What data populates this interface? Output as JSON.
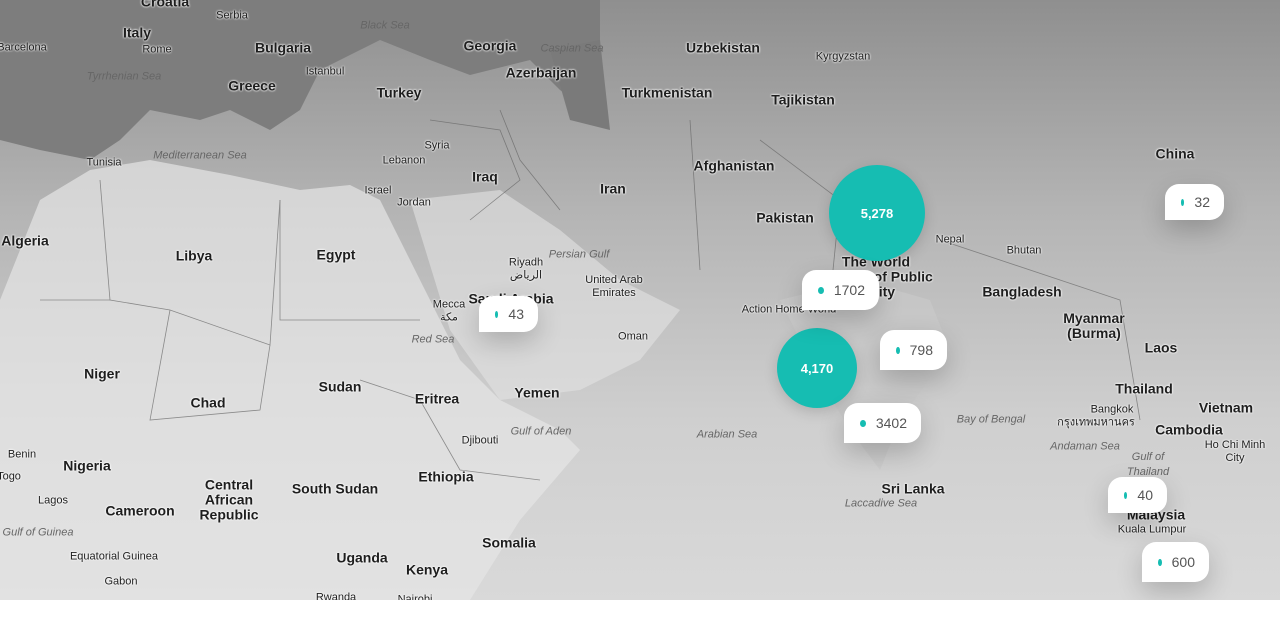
{
  "map": {
    "labels": [
      "Croatia",
      "Serbia",
      "Italy",
      "Rome",
      "Barcelona",
      "Bulgaria",
      "Istanbul",
      "Black Sea",
      "Georgia",
      "Caspian Sea",
      "Uzbekistan",
      "Kyrgyzstan",
      "Tyrrhenian Sea",
      "Greece",
      "Turkey",
      "Azerbaijan",
      "Turkmenistan",
      "Tajikistan",
      "Tunisia",
      "Mediterranean Sea",
      "Syria",
      "Lebanon",
      "Iraq",
      "Afghanistan",
      "China",
      "Israel",
      "Jordan",
      "Iran",
      "Pakistan",
      "Algeria",
      "Libya",
      "Egypt",
      "Riyadh",
      "الرياض",
      "Persian Gulf",
      "United Arab Emirates",
      "Nepal",
      "Bhutan",
      "The World Journal of Public Polity",
      "Bangladesh",
      "Mecca",
      "مكة",
      "Saudi Arabia",
      "Action Home World",
      "Myanmar (Burma)",
      "Oman",
      "Red Sea",
      "Laos",
      "Niger",
      "Sudan",
      "Chad",
      "Eritrea",
      "Yemen",
      "Thailand",
      "Vietnam",
      "Bangkok",
      "กรุงเทพมหานคร",
      "Cambodia",
      "Gulf of Aden",
      "Arabian Sea",
      "Bay of Bengal",
      "Andaman Sea",
      "Ho Chi Minh City",
      "Djibouti",
      "Benin",
      "Nigeria",
      "Ethiopia",
      "Gulf of Thailand",
      "Togo",
      "Lagos",
      "Central African Republic",
      "South Sudan",
      "Sri Lanka",
      "Malaysia",
      "Cameroon",
      "Laccadive Sea",
      "Kuala Lumpur",
      "Gulf of Guinea",
      "Somalia",
      "Equatorial Guinea",
      "Uganda",
      "Kenya",
      "Gabon",
      "Rwanda",
      "Nairobi"
    ],
    "clusters": [
      "5,278",
      "4,170"
    ],
    "pins": [
      "1702",
      "43",
      "798",
      "3402",
      "32",
      "40",
      "600"
    ]
  }
}
